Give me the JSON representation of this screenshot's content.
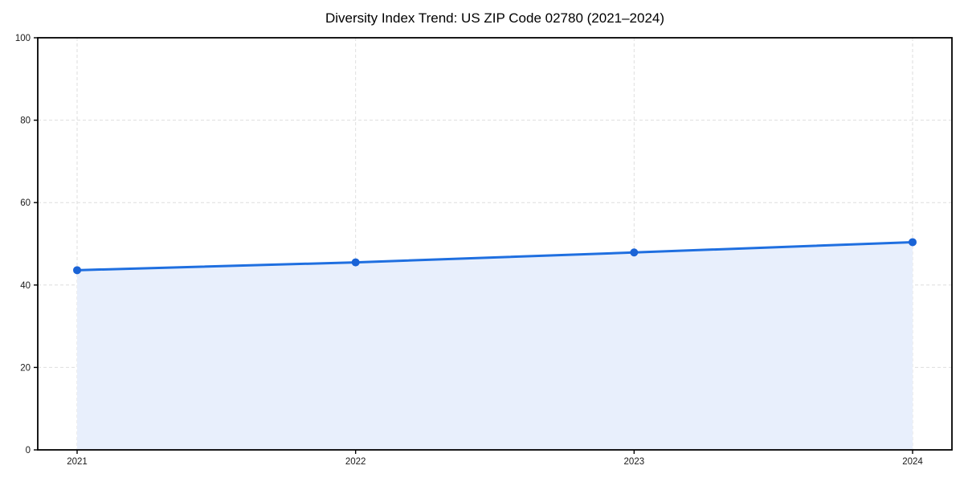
{
  "chart_data": {
    "type": "area",
    "title": "Diversity Index Trend: US ZIP Code 02780 (2021–2024)",
    "categories": [
      2021,
      2022,
      2023,
      2024
    ],
    "series": [
      {
        "name": "Diversity Index",
        "values": [
          43.6,
          45.5,
          47.9,
          50.4
        ]
      }
    ],
    "xlabel": "",
    "ylabel": "",
    "ylim": [
      0,
      100
    ],
    "yticks": [
      0,
      20,
      40,
      60,
      80,
      100
    ],
    "grid": "dashed-both",
    "legend_position": "none",
    "colors": {
      "line": "#1f6fe0",
      "marker": "#1a63d6",
      "fill": "#e8effc",
      "grid": "#dedede",
      "axis": "#000000",
      "tick_text": "#1a1a1a",
      "title_text": "#000000",
      "background": "#ffffff"
    }
  }
}
